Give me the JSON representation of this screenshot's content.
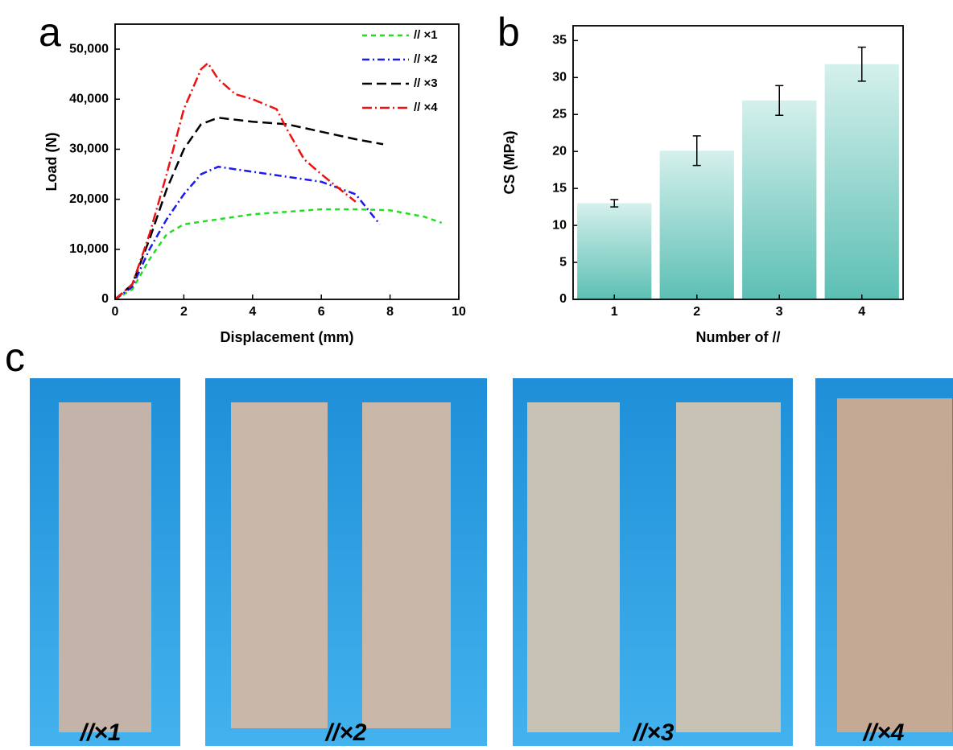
{
  "panel_labels": [
    "a",
    "b",
    "c"
  ],
  "photo_labels": [
    "//×1",
    "//×2",
    "//×3",
    "//×4"
  ],
  "chart_data": [
    {
      "type": "line",
      "xlabel": "Displacement (mm)",
      "ylabel": "Load (N)",
      "xlim": [
        0,
        10
      ],
      "ylim": [
        0,
        55000
      ],
      "xticks": [
        0,
        2,
        4,
        6,
        8,
        10
      ],
      "yticks": [
        0,
        {
          "value": 10000,
          "label": "10,000"
        },
        {
          "value": 20000,
          "label": "20,000"
        },
        {
          "value": 30000,
          "label": "30,000"
        },
        {
          "value": 40000,
          "label": "40,000"
        },
        {
          "value": 50000,
          "label": "50,000"
        }
      ],
      "legend": "upper right",
      "series": [
        {
          "name": "// ×1",
          "color": "#22dd22",
          "dash": "6,5",
          "x": [
            0,
            0.5,
            1,
            1.5,
            2,
            3,
            4,
            5,
            6,
            7,
            8,
            9,
            9.5
          ],
          "values": [
            0,
            2000,
            8000,
            13000,
            15000,
            16000,
            17000,
            17500,
            18000,
            18000,
            17800,
            16500,
            15300
          ]
        },
        {
          "name": "// ×2",
          "color": "#1a1aee",
          "dash": "9,4,2,4",
          "x": [
            0,
            0.5,
            1,
            1.5,
            2,
            2.5,
            3,
            3.5,
            4,
            5,
            6,
            7,
            7.7
          ],
          "values": [
            0,
            2500,
            10000,
            16000,
            21000,
            25000,
            26500,
            26000,
            25500,
            24500,
            23500,
            21000,
            15000
          ]
        },
        {
          "name": "// ×3",
          "color": "#000000",
          "dash": "12,6",
          "x": [
            0,
            0.5,
            1,
            1.5,
            2,
            2.5,
            3,
            4,
            5,
            6,
            7,
            7.8
          ],
          "values": [
            0,
            3000,
            12000,
            22000,
            30000,
            35000,
            36300,
            35500,
            35000,
            33500,
            32000,
            31000
          ]
        },
        {
          "name": "// ×4",
          "color": "#ee1111",
          "dash": "12,4,2,4",
          "x": [
            0,
            0.5,
            1,
            1.5,
            2,
            2.5,
            2.7,
            3,
            3.5,
            4,
            4.7,
            5,
            5.5,
            6,
            7
          ],
          "values": [
            0,
            3000,
            13000,
            25000,
            38000,
            46000,
            47200,
            44000,
            41000,
            40000,
            38000,
            34000,
            28000,
            25000,
            19500
          ]
        }
      ]
    },
    {
      "type": "bar",
      "xlabel": "Number of //",
      "ylabel": "CS (MPa)",
      "categories": [
        "1",
        "2",
        "3",
        "4"
      ],
      "values": [
        13,
        20.1,
        26.9,
        31.8
      ],
      "errors": [
        0.5,
        2,
        2,
        2.3
      ],
      "color": "#5cbfb4",
      "ylim": [
        0,
        37
      ],
      "yticks": [
        0,
        5,
        10,
        15,
        20,
        25,
        30,
        35
      ]
    }
  ]
}
